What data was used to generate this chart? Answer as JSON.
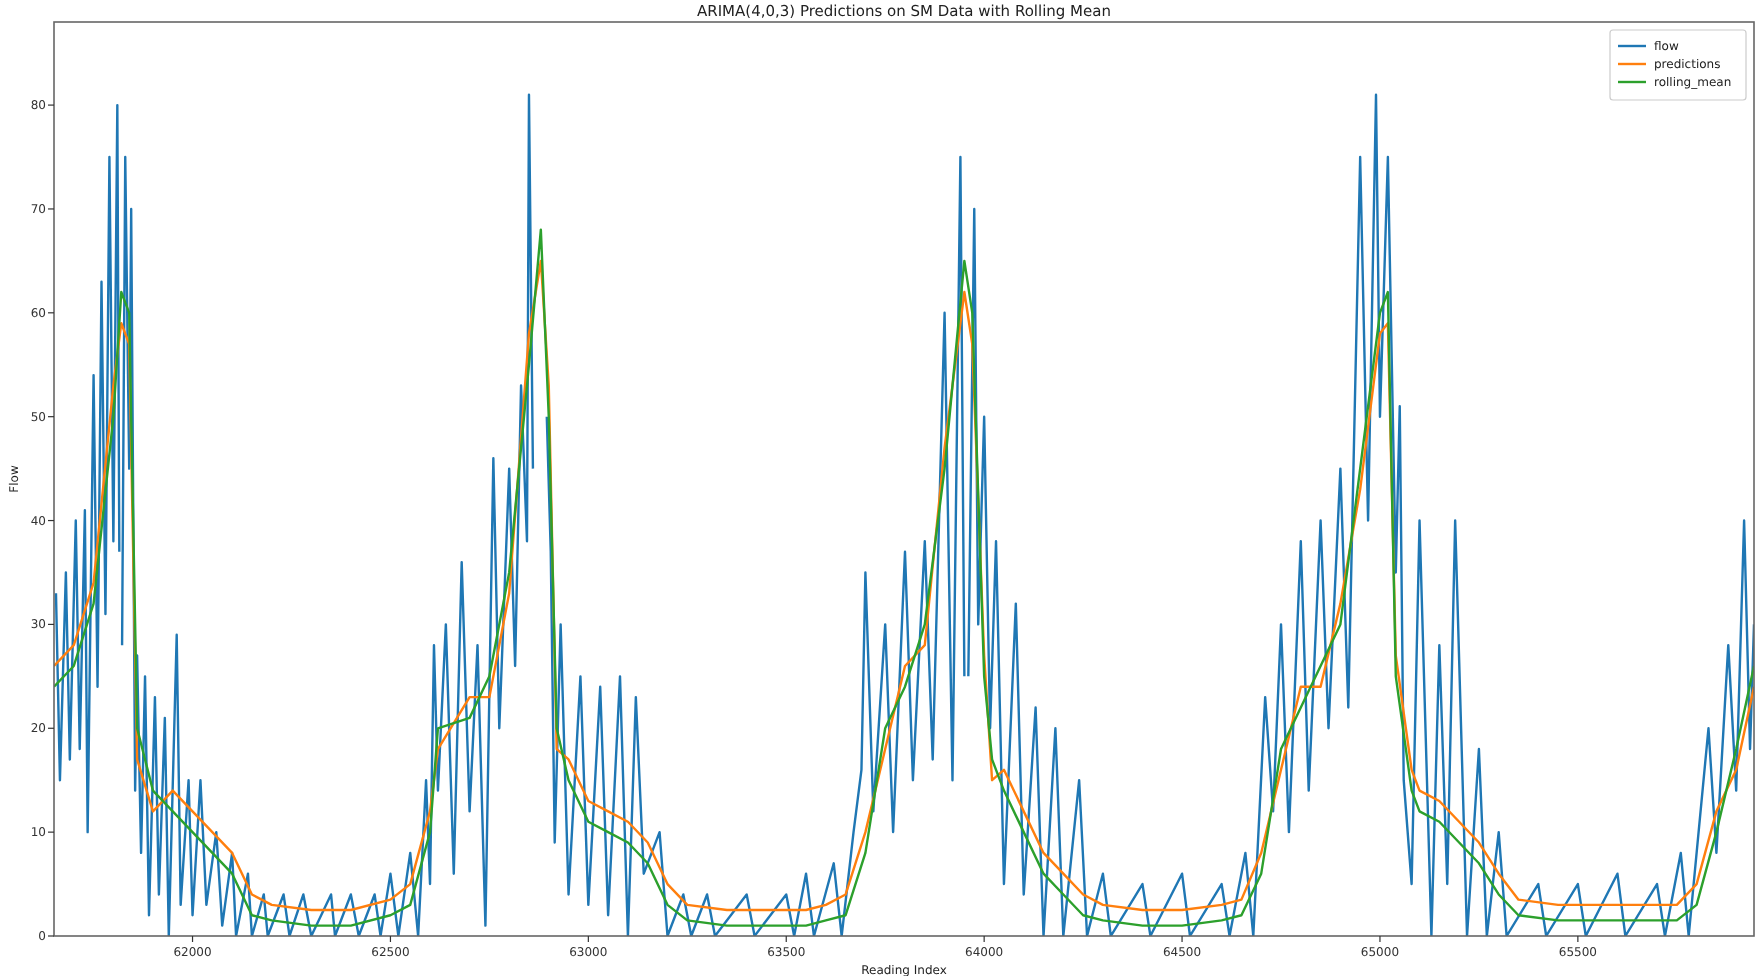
{
  "chart_data": {
    "type": "line",
    "title": "ARIMA(4,0,3) Predictions on SM Data with Rolling Mean",
    "xlabel": "Reading Index",
    "ylabel": "Flow",
    "xlim": [
      61650,
      65945
    ],
    "xticks": [
      62000,
      62500,
      63000,
      63500,
      64000,
      64500,
      65000,
      65500
    ],
    "ylim": [
      0,
      88
    ],
    "yticks": [
      0,
      10,
      20,
      30,
      40,
      50,
      60,
      70,
      80
    ],
    "legend": "top right",
    "grid": false,
    "series": [
      {
        "name": "flow",
        "color": "#1f77b4",
        "x": [
          61655,
          61665,
          61680,
          61690,
          61705,
          61715,
          61728,
          61735,
          61750,
          61760,
          61770,
          61780,
          61790,
          61800,
          61810,
          61815,
          61818,
          61822,
          61830,
          61840,
          61845,
          61855,
          61860,
          61870,
          61880,
          61890,
          61905,
          61915,
          61930,
          61940,
          61960,
          61970,
          61990,
          62000,
          62020,
          62035,
          62060,
          62075,
          62100,
          62110,
          62140,
          62150,
          62180,
          62190,
          62230,
          62245,
          62280,
          62300,
          62350,
          62360,
          62400,
          62420,
          62460,
          62475,
          62500,
          62520,
          62550,
          62570,
          62590,
          62600,
          62610,
          62620,
          62640,
          62660,
          62680,
          62700,
          62720,
          62740,
          62760,
          62775,
          62800,
          62815,
          62830,
          62845,
          62850,
          62860,
          62870,
          62890,
          62895,
          62905,
          62915,
          62930,
          62950,
          62980,
          63000,
          63030,
          63050,
          63080,
          63100,
          63120,
          63140,
          63180,
          63200,
          63240,
          63260,
          63300,
          63320,
          63400,
          63420,
          63500,
          63520,
          63550,
          63570,
          63620,
          63640,
          63670,
          63690,
          63700,
          63720,
          63750,
          63770,
          63800,
          63820,
          63850,
          63870,
          63900,
          63920,
          63940,
          63950,
          63955,
          63960,
          63975,
          63985,
          64000,
          64015,
          64030,
          64050,
          64080,
          64100,
          64130,
          64150,
          64180,
          64200,
          64240,
          64260,
          64300,
          64320,
          64400,
          64420,
          64500,
          64520,
          64600,
          64620,
          64660,
          64680,
          64710,
          64730,
          64750,
          64770,
          64800,
          64820,
          64850,
          64870,
          64900,
          64920,
          64950,
          64970,
          64990,
          65000,
          65020,
          65040,
          65050,
          65060,
          65080,
          65100,
          65130,
          65150,
          65170,
          65190,
          65220,
          65250,
          65270,
          65300,
          65320,
          65400,
          65420,
          65500,
          65520,
          65600,
          65620,
          65700,
          65720,
          65760,
          65780,
          65830,
          65850,
          65880,
          65900,
          65920,
          65935,
          65945
        ],
        "values": [
          33,
          15,
          35,
          17,
          40,
          18,
          41,
          10,
          54,
          24,
          63,
          31,
          75,
          38,
          80,
          37,
          null,
          28,
          75,
          45,
          70,
          14,
          27,
          8,
          25,
          2,
          23,
          4,
          21,
          0,
          29,
          3,
          15,
          2,
          15,
          3,
          10,
          1,
          8,
          0,
          6,
          0,
          4,
          0,
          4,
          0,
          4,
          0,
          4,
          0,
          4,
          0,
          4,
          0,
          6,
          0,
          8,
          0,
          15,
          5,
          28,
          14,
          30,
          6,
          36,
          12,
          28,
          1,
          46,
          20,
          45,
          26,
          53,
          38,
          81,
          45,
          null,
          null,
          50,
          37,
          9,
          30,
          4,
          25,
          3,
          24,
          2,
          25,
          0,
          23,
          6,
          10,
          0,
          4,
          0,
          4,
          0,
          4,
          0,
          4,
          0,
          6,
          0,
          7,
          0,
          10,
          16,
          35,
          12,
          30,
          10,
          37,
          15,
          38,
          17,
          60,
          15,
          75,
          25,
          null,
          25,
          70,
          30,
          50,
          20,
          38,
          5,
          32,
          4,
          22,
          0,
          20,
          0,
          15,
          0,
          6,
          0,
          5,
          0,
          6,
          0,
          5,
          0,
          8,
          0,
          23,
          12,
          30,
          10,
          38,
          14,
          40,
          20,
          45,
          22,
          75,
          40,
          81,
          50,
          75,
          35,
          51,
          15,
          5,
          40,
          0,
          28,
          5,
          40,
          0,
          18,
          0,
          10,
          0,
          5,
          0,
          5,
          0,
          6,
          0,
          5,
          0,
          8,
          0,
          20,
          8,
          28,
          14,
          40,
          18,
          30
        ]
      },
      {
        "name": "predictions",
        "color": "#ff7f0e",
        "x": [
          61650,
          61700,
          61750,
          61800,
          61820,
          61840,
          61860,
          61900,
          61950,
          62000,
          62050,
          62100,
          62150,
          62200,
          62300,
          62400,
          62500,
          62550,
          62600,
          62620,
          62700,
          62750,
          62800,
          62850,
          62880,
          62900,
          62920,
          62950,
          63000,
          63050,
          63100,
          63150,
          63200,
          63250,
          63350,
          63450,
          63550,
          63600,
          63650,
          63700,
          63750,
          63800,
          63850,
          63900,
          63950,
          63970,
          64000,
          64020,
          64050,
          64100,
          64150,
          64200,
          64250,
          64300,
          64400,
          64500,
          64600,
          64650,
          64700,
          64750,
          64800,
          64850,
          64900,
          64950,
          65000,
          65020,
          65040,
          65080,
          65100,
          65150,
          65200,
          65250,
          65300,
          65350,
          65450,
          65550,
          65650,
          65750,
          65800,
          65850,
          65900,
          65945
        ],
        "values": [
          26,
          28,
          34,
          53,
          59,
          57,
          17,
          12,
          14,
          12,
          10,
          8,
          4,
          3,
          2.5,
          2.5,
          3.5,
          5,
          12,
          18,
          23,
          23,
          33,
          58,
          65,
          53,
          18,
          17,
          13,
          12,
          11,
          9,
          5,
          3,
          2.5,
          2.5,
          2.5,
          3,
          4,
          10,
          18,
          26,
          28,
          47,
          62,
          57,
          27,
          15,
          16,
          12,
          8,
          6,
          4,
          3,
          2.5,
          2.5,
          3,
          3.5,
          8,
          16,
          24,
          24,
          32,
          43,
          58,
          59,
          27,
          16,
          14,
          13,
          11,
          9,
          6,
          3.5,
          3,
          3,
          3,
          3,
          5,
          12,
          16,
          24
        ]
      },
      {
        "name": "rolling_mean",
        "color": "#2ca02c",
        "x": [
          61650,
          61700,
          61750,
          61800,
          61820,
          61840,
          61860,
          61900,
          61950,
          62000,
          62050,
          62100,
          62150,
          62200,
          62300,
          62400,
          62500,
          62550,
          62600,
          62620,
          62700,
          62750,
          62800,
          62850,
          62880,
          62900,
          62920,
          62950,
          63000,
          63050,
          63100,
          63150,
          63200,
          63250,
          63350,
          63450,
          63550,
          63600,
          63650,
          63700,
          63750,
          63800,
          63850,
          63900,
          63950,
          63970,
          64000,
          64020,
          64050,
          64100,
          64150,
          64200,
          64250,
          64300,
          64400,
          64500,
          64600,
          64650,
          64700,
          64750,
          64800,
          64850,
          64900,
          64950,
          65000,
          65020,
          65040,
          65080,
          65100,
          65150,
          65200,
          65250,
          65300,
          65350,
          65450,
          65550,
          65650,
          65750,
          65800,
          65850,
          65900,
          65945
        ],
        "values": [
          24,
          26,
          32,
          50,
          62,
          60,
          20,
          14,
          12,
          10,
          8,
          6,
          2,
          1.5,
          1,
          1,
          2,
          3,
          10,
          20,
          21,
          25,
          35,
          55,
          68,
          50,
          20,
          15,
          11,
          10,
          9,
          7,
          3,
          1.5,
          1,
          1,
          1,
          1.5,
          2,
          8,
          20,
          24,
          30,
          45,
          65,
          60,
          25,
          17,
          14,
          10,
          6,
          4,
          2,
          1.5,
          1,
          1,
          1.5,
          2,
          6,
          18,
          22,
          26,
          30,
          45,
          60,
          62,
          25,
          14,
          12,
          11,
          9,
          7,
          4,
          2,
          1.5,
          1.5,
          1.5,
          1.5,
          3,
          10,
          18,
          26
        ]
      }
    ]
  }
}
